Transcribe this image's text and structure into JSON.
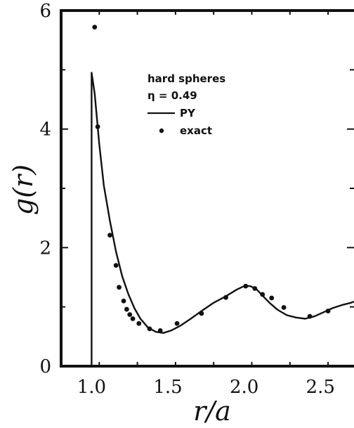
{
  "chart_data": {
    "type": "line",
    "xlabel": "r/a",
    "ylabel": "g(r)",
    "xlim": [
      0.8,
      2.72
    ],
    "ylim": [
      0,
      6
    ],
    "x_ticks": [
      "1.0",
      "1.5",
      "2.0",
      "2.5"
    ],
    "x_tick_values": [
      1.0,
      1.5,
      2.0,
      2.5
    ],
    "y_ticks": [
      "0",
      "2",
      "4",
      "6"
    ],
    "y_tick_values": [
      0,
      2,
      4,
      6
    ],
    "grid": false,
    "legend": {
      "placement": "top-center",
      "lines": [
        "hard spheres",
        "η = 0.49"
      ],
      "entries": [
        {
          "label": "PY",
          "marker": "line"
        },
        {
          "label": "exact",
          "marker": "dot"
        }
      ]
    },
    "series": [
      {
        "name": "PY",
        "style": "line",
        "color": "#111111",
        "x": [
          1.0,
          1.0,
          1.02,
          1.05,
          1.08,
          1.12,
          1.16,
          1.2,
          1.24,
          1.28,
          1.32,
          1.37,
          1.42,
          1.47,
          1.52,
          1.58,
          1.65,
          1.72,
          1.8,
          1.88,
          1.95,
          2.0,
          2.04,
          2.08,
          2.12,
          2.17,
          2.22,
          2.28,
          2.34,
          2.4,
          2.46,
          2.52,
          2.58,
          2.64,
          2.7,
          2.72
        ],
        "y": [
          0.0,
          4.95,
          4.6,
          3.75,
          3.05,
          2.45,
          1.93,
          1.52,
          1.22,
          0.98,
          0.8,
          0.65,
          0.58,
          0.56,
          0.6,
          0.68,
          0.8,
          0.93,
          1.07,
          1.18,
          1.29,
          1.35,
          1.35,
          1.3,
          1.19,
          1.06,
          0.95,
          0.86,
          0.82,
          0.8,
          0.84,
          0.91,
          0.98,
          1.03,
          1.07,
          1.09
        ]
      },
      {
        "name": "exact",
        "style": "scatter",
        "color": "#111111",
        "x": [
          1.02,
          1.04,
          1.12,
          1.16,
          1.18,
          1.21,
          1.23,
          1.25,
          1.27,
          1.31,
          1.38,
          1.45,
          1.56,
          1.72,
          1.88,
          2.01,
          2.07,
          2.12,
          2.18,
          2.26,
          2.43,
          2.55
        ],
        "y": [
          5.72,
          4.04,
          2.21,
          1.7,
          1.33,
          1.1,
          0.96,
          0.87,
          0.8,
          0.72,
          0.63,
          0.6,
          0.72,
          0.89,
          1.16,
          1.35,
          1.31,
          1.21,
          1.15,
          0.99,
          0.84,
          0.93
        ]
      }
    ]
  }
}
